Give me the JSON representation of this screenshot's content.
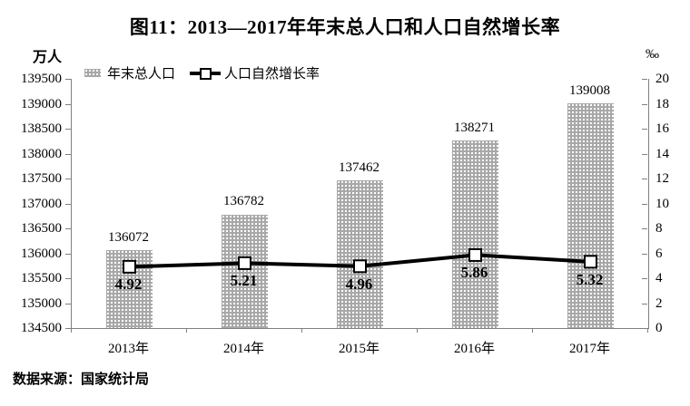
{
  "title": "图11：2013—2017年年末总人口和人口自然增长率",
  "left_axis_unit": "万人",
  "right_axis_unit": "‰",
  "legend": {
    "bar_label": "年末总人口",
    "line_label": "人口自然增长率"
  },
  "source": "数据来源：国家统计局",
  "colors": {
    "bar_fill": "#a8a8a8",
    "bar_dot": "#ffffff",
    "line": "#000000",
    "marker_fill": "#ffffff",
    "marker_border": "#000000",
    "axis": "#808080",
    "text": "#000000"
  },
  "chart_data": {
    "type": "bar",
    "subtype": "bar+line combo, dual axis",
    "title": "图11：2013—2017年年末总人口和人口自然增长率",
    "categories": [
      "2013年",
      "2014年",
      "2015年",
      "2016年",
      "2017年"
    ],
    "series": [
      {
        "name": "年末总人口",
        "type": "bar",
        "axis": "left",
        "unit": "万人",
        "values": [
          136072,
          136782,
          137462,
          138271,
          139008
        ]
      },
      {
        "name": "人口自然增长率",
        "type": "line",
        "axis": "right",
        "unit": "‰",
        "values": [
          4.92,
          5.21,
          4.96,
          5.86,
          5.32
        ]
      }
    ],
    "left_axis": {
      "label": "万人",
      "min": 134500,
      "max": 139500,
      "step": 500
    },
    "right_axis": {
      "label": "‰",
      "min": 0,
      "max": 20,
      "step": 2
    },
    "legend_position": "top-left inside",
    "grid": false,
    "source": "数据来源：国家统计局"
  }
}
